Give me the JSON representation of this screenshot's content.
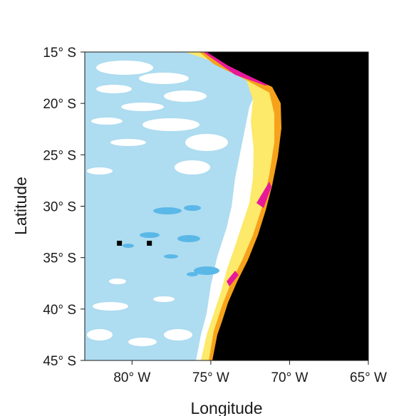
{
  "map": {
    "x_axis": {
      "title": "Longitude",
      "ticks": [
        {
          "value": -80,
          "label": "80° W"
        },
        {
          "value": -75,
          "label": "75° W"
        },
        {
          "value": -70,
          "label": "70° W"
        },
        {
          "value": -65,
          "label": "65° W"
        }
      ],
      "range": [
        -83.0,
        -65.0
      ]
    },
    "y_axis": {
      "title": "Latitude",
      "ticks": [
        {
          "value": -15,
          "label": "15° S"
        },
        {
          "value": -20,
          "label": "20° S"
        },
        {
          "value": -25,
          "label": "25° S"
        },
        {
          "value": -30,
          "label": "30° S"
        },
        {
          "value": -35,
          "label": "35° S"
        },
        {
          "value": -40,
          "label": "40° S"
        },
        {
          "value": -45,
          "label": "45° S"
        }
      ],
      "range": [
        -45.0,
        -15.0
      ]
    },
    "colors": {
      "land": "#000000",
      "ocean_light_blue": "#aedcf0",
      "ocean_mid_blue": "#5ab8e8",
      "white_band": "#ffffff",
      "yellow": "#fde96a",
      "orange": "#f7a21b",
      "magenta": "#e8189a"
    },
    "islands": [
      {
        "name": "",
        "lon": -80.8,
        "lat": -33.6
      },
      {
        "name": "",
        "lon": -78.9,
        "lat": -33.6
      }
    ]
  }
}
